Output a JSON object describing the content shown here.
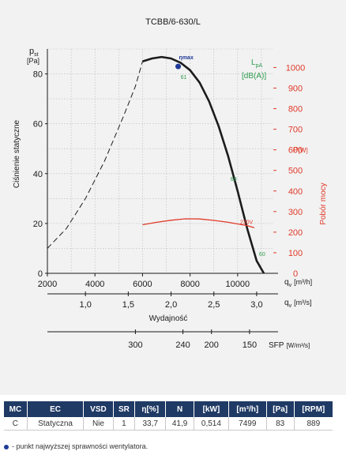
{
  "chart_data": {
    "type": "line",
    "title": "TCBB/6-630/L",
    "left_axis": {
      "symbol": "p",
      "subscript": "st",
      "unit": "[Pa]",
      "label": "Ciśnienie statyczne",
      "ylim": [
        0,
        90
      ],
      "ticks": [
        0,
        20,
        40,
        60,
        80
      ]
    },
    "right_axis": {
      "symbol": "P",
      "unit": "[W]",
      "label": "Pobór mocy",
      "color": "#e03a2a",
      "ylim": [
        0,
        1090
      ],
      "ticks": [
        0,
        100,
        200,
        300,
        400,
        500,
        600,
        700,
        800,
        900,
        1000
      ]
    },
    "x_axis_primary": {
      "symbol": "q",
      "subscript": "v",
      "unit": "[m³/h]",
      "xlim": [
        2000,
        11500
      ],
      "ticks": [
        2000,
        4000,
        6000,
        8000,
        10000
      ]
    },
    "x_axis_secondary": {
      "symbol": "q",
      "subscript": "v",
      "unit": "[m³/s]",
      "label": "Wydajność",
      "ticks": [
        "1,0",
        "1,5",
        "2,0",
        "2,5",
        "3,0"
      ],
      "tick_values": [
        1.0,
        1.5,
        2.0,
        2.5,
        3.0
      ]
    },
    "x_axis_sfp": {
      "label": "SFP",
      "unit": "[W/m³/s]",
      "ticks": [
        "300",
        "240",
        "200",
        "150"
      ],
      "tick_positions_m3h": [
        5700,
        7700,
        8900,
        10500
      ]
    },
    "lpa_label": {
      "symbol": "L",
      "subscript": "pA",
      "unit": "[dB(A)]",
      "color": "#2e9a4e"
    },
    "series": [
      {
        "role": "pressure-stable",
        "color": "#1c1c1c",
        "x": [
          6000,
          6400,
          6800,
          7200,
          7600,
          8000,
          8400,
          8800,
          9200,
          9600,
          10000,
          10400,
          10800,
          11100
        ],
        "y": [
          85,
          86.2,
          86.8,
          86.2,
          84.5,
          81.5,
          76.5,
          69,
          59,
          47,
          33,
          18,
          5,
          0
        ]
      },
      {
        "role": "pressure-unstable",
        "color": "#1c1c1c",
        "x": [
          2000,
          2800,
          3600,
          4400,
          5200,
          5700,
          6000
        ],
        "y": [
          10,
          18,
          30,
          45,
          63,
          75,
          85
        ]
      },
      {
        "role": "power",
        "color": "#e03a2a",
        "x": [
          6000,
          6600,
          7200,
          7800,
          8400,
          9000,
          9600,
          10000,
          10400,
          10700
        ],
        "y": [
          236,
          248,
          258,
          265,
          264,
          257,
          248,
          240,
          232,
          222
        ]
      }
    ],
    "eta_max": {
      "label": "ηmax",
      "x": 7499,
      "y": 83
    },
    "annotations": [
      {
        "text": "61",
        "x": 7600,
        "y": 78,
        "color": "#2e9a4e"
      },
      {
        "text": "60",
        "x": 9700,
        "y": 37,
        "color": "#2e9a4e"
      },
      {
        "text": "60",
        "x": 10900,
        "y": 7,
        "color": "#2e9a4e"
      },
      {
        "text": "230V",
        "x": 10100,
        "y": 24,
        "color": "#e03a2a"
      }
    ],
    "grid": true
  },
  "table": {
    "headers": [
      "MC",
      "EC",
      "VSD",
      "SR",
      "η[%]",
      "N",
      "[kW]",
      "[m³/h]",
      "[Pa]",
      "[RPM]"
    ],
    "rows": [
      [
        "C",
        "Statyczna",
        "Nie",
        "1",
        "33,7",
        "41,9",
        "0,514",
        "7499",
        "83",
        "889"
      ]
    ]
  },
  "footnote": "- punkt najwyższej sprawności wentylatora."
}
